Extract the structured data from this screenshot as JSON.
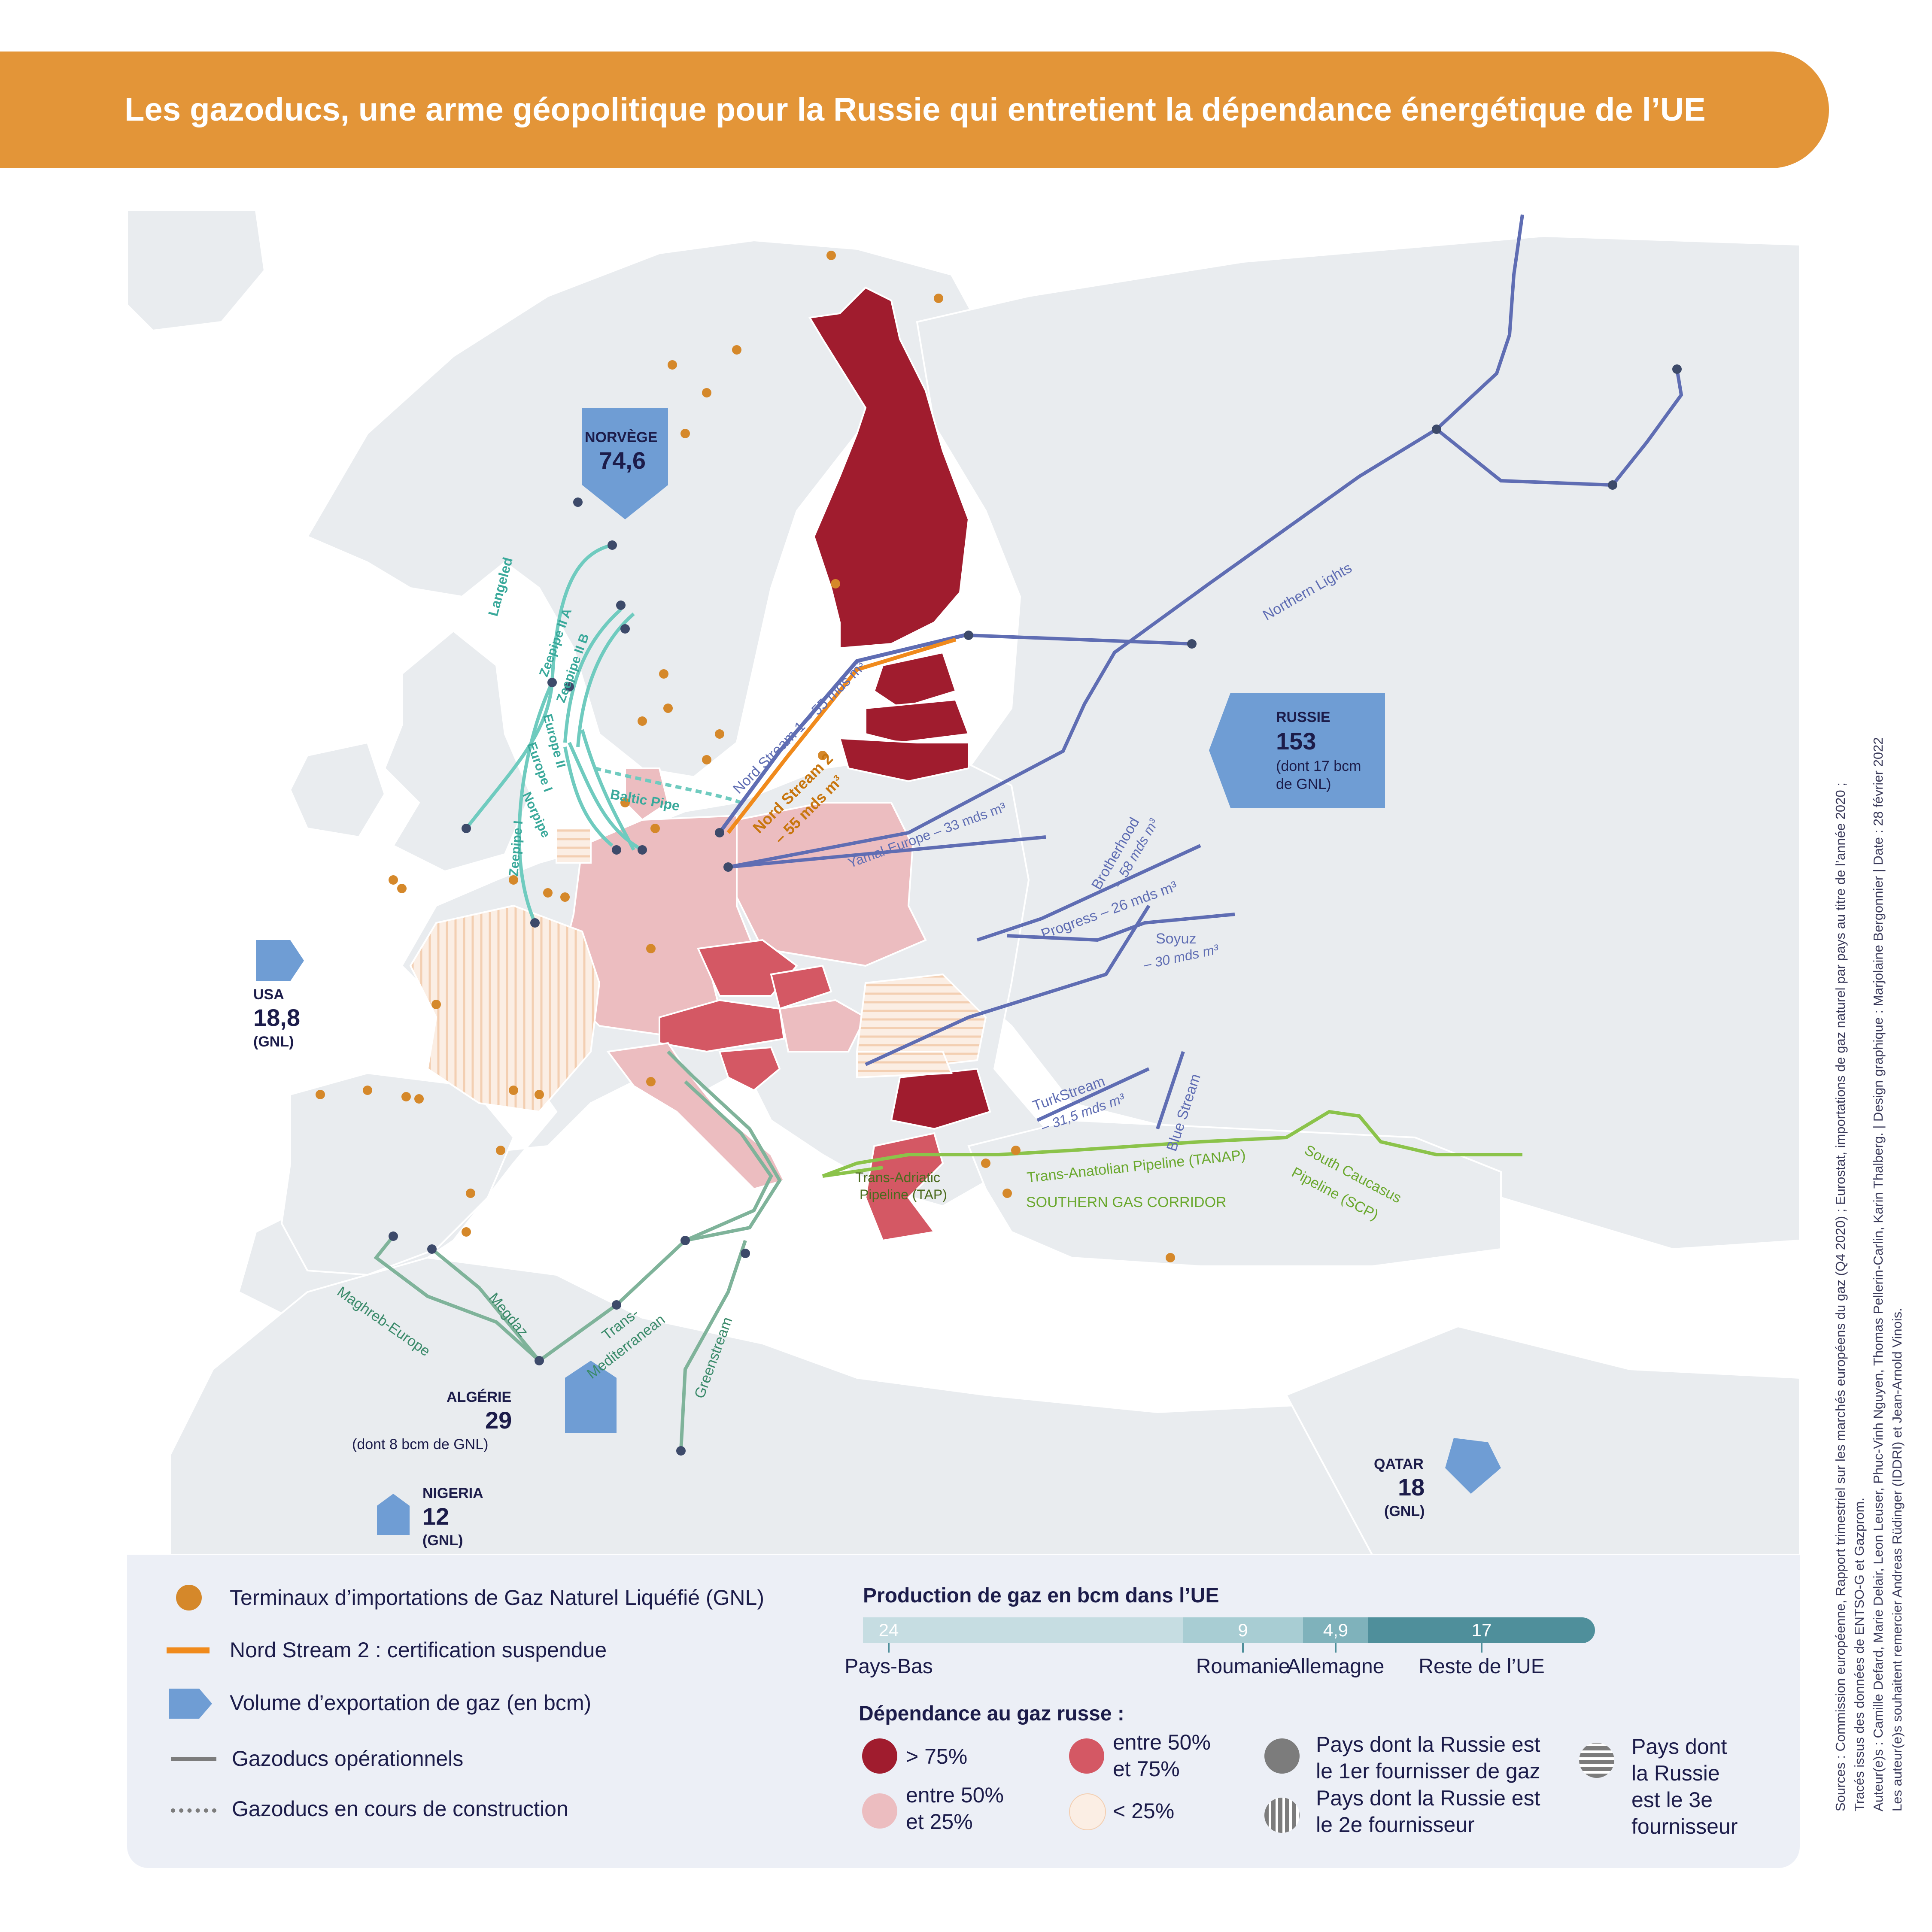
{
  "title": "Les gazoducs, une arme géopolitique pour la Russie qui entretient la dépendance énergétique de l’UE",
  "exporters": [
    {
      "name": "NORVÈGE",
      "value": "74,6",
      "note": ""
    },
    {
      "name": "RUSSIE",
      "value": "153",
      "note": "(dont 17 bcm",
      "note2": "de GNL)"
    },
    {
      "name": "USA",
      "value": "18,8",
      "note": "(GNL)"
    },
    {
      "name": "ALGÉRIE",
      "value": "29",
      "note": "(dont 8 bcm de GNL)"
    },
    {
      "name": "NIGERIA",
      "value": "12",
      "note": "(GNL)"
    },
    {
      "name": "QATAR",
      "value": "18",
      "note": "(GNL)"
    }
  ],
  "pipelines": {
    "langeled": "Langeled",
    "zeepipe_iia": "Zeepipe II A",
    "zeepipe_iib": "Zeepipe II B",
    "europe_ii": "Europe II",
    "europe_i": "Europe I",
    "norpipe": "Norpipe",
    "zeepipe_i": "Zeepipe I",
    "baltic_pipe": "Baltic Pipe",
    "nord_stream_1": "Nord Stream 1 – 55 mds m³",
    "nord_stream_2_a": "Nord Stream 2",
    "nord_stream_2_b": "– 55 mds m³",
    "yamal": "Yamal-Europe – 33 mds m³",
    "northern_lights": "Northern Lights",
    "brotherhood_a": "Brotherhood",
    "brotherhood_b": "– 58 mds m³",
    "progress": "Progress – 26 mds m³",
    "soyuz_a": "Soyuz",
    "soyuz_b": "– 30 mds m³",
    "turkstream_a": "TurkStream",
    "turkstream_b": "– 31,5 mds m³",
    "blue_stream": "Blue Stream",
    "tanap": "Trans-Anatolian Pipeline (TANAP)",
    "sgc": "SOUTHERN GAS CORRIDOR",
    "scp_a": "South Caucasus",
    "scp_b": "Pipeline (SCP)",
    "tap_a": "Trans-Adriatic",
    "tap_b": "Pipeline (TAP)",
    "maghreb": "Maghreb-Europe",
    "medgaz": "Megdaz",
    "transmed_a": "Trans-",
    "transmed_b": "Mediterranean",
    "greenstream": "Greenstream"
  },
  "legend": {
    "lng_terminals": "Terminaux d’importations de Gaz Naturel Liquéfié (GNL)",
    "nord_stream_2": "Nord Stream 2 : certification suspendue",
    "export_volume": "Volume d’exportation de gaz (en bcm)",
    "operational": "Gazoducs opérationnels",
    "under_construction": "Gazoducs en cours de construction",
    "production_title": "Production de gaz en bcm dans l’UE",
    "dependence_title": "Dépendance au gaz russe :",
    "dep_gt75": "> 75%",
    "dep_50_75_a": "entre 50%",
    "dep_50_75_b": "et 75%",
    "dep_25_50_a": "entre 50%",
    "dep_25_50_b": "et 25%",
    "dep_lt25": "< 25%",
    "first_supplier_a": "Pays dont la Russie est",
    "first_supplier_b": "le 1er fournisser de gaz",
    "second_supplier_a": "Pays dont la Russie est",
    "second_supplier_b": "le 2e fournisseur",
    "third_supplier_a": "Pays dont",
    "third_supplier_b": "la Russie",
    "third_supplier_c": "est le 3e",
    "third_supplier_d": "fournisseur"
  },
  "production": [
    {
      "label": "Pays-Bas",
      "value": 24,
      "display": "24",
      "color": "#c6dde2"
    },
    {
      "label": "Roumanie",
      "value": 9,
      "display": "9",
      "color": "#a8cdd3"
    },
    {
      "label": "Allemagne",
      "value": 4.9,
      "display": "4,9",
      "color": "#7fb2bb"
    },
    {
      "label": "Reste de l’UE",
      "value": 17,
      "display": "17",
      "color": "#4f8f9b"
    }
  ],
  "colors": {
    "banner": "#e39538",
    "dep_gt75": "#a01c2e",
    "dep_50_75": "#d45864",
    "dep_25_50": "#ecbdc0",
    "dep_lt25": "#fbeee4",
    "russian_pipeline": "#5f6db3",
    "norwegian_pipeline": "#6fcbbf",
    "african_pipeline": "#7fb39a",
    "southern_corridor": "#8bc34a",
    "nord_stream_2": "#f08a1c",
    "lng": "#d5882a",
    "exporter_arrow": "#6f9dd4"
  },
  "sources": [
    "Sources : Commission européenne, Rapport trimestriel sur les marchés européens du gaz (Q4 2020) ; Eurostat, importations de gaz naturel par pays au titre de l’année 2020 ;",
    "Tracés issus des données de ENTSO-G et Gazprom.",
    "Auteur(e)s : Camille Defard, Marie Delair, Leon Leuser, Phuc-Vinh Nguyen, Thomas Pellerin-Carlin, Karin Thalberg.  |  Design graphique : Marjolaine Bergonnier  |  Date : 28 février 2022",
    "Les auteur(e)s souhaitent remercier Andreas Rüdinger (IDDRI) et Jean-Arnold Vinois."
  ]
}
